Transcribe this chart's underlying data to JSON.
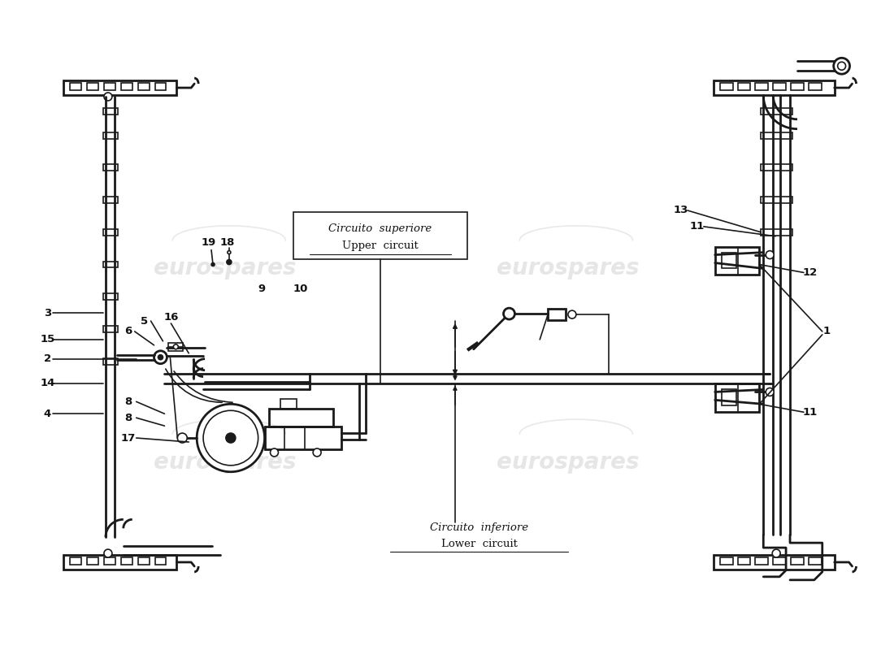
{
  "bg_color": "#ffffff",
  "line_color": "#1a1a1a",
  "text_color": "#111111",
  "watermark_color": "#c8c8c8",
  "watermark_text": "eurospares",
  "upper_circuit_label_it": "Circuito  superiore",
  "upper_circuit_label_en": "Upper  circuit",
  "lower_circuit_label_it": "Circuito  inferiore",
  "lower_circuit_label_en": "Lower  circuit",
  "figsize": [
    11.0,
    8.0
  ],
  "dpi": 100
}
